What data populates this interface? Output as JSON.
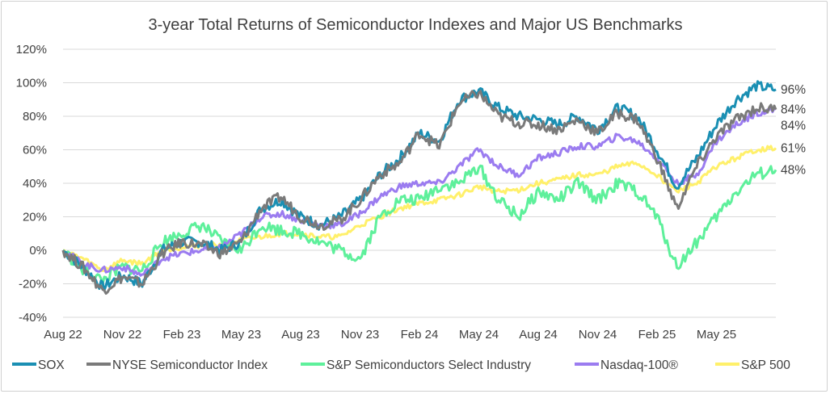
{
  "chart_data": {
    "type": "line",
    "title": "3-year Total Returns of Semiconductor Indexes and Major US Benchmarks",
    "xlabel": "",
    "ylabel": "",
    "ylim": [
      -40,
      120
    ],
    "y_ticks": [
      "-40%",
      "-20%",
      "0%",
      "20%",
      "40%",
      "60%",
      "80%",
      "100%",
      "120%"
    ],
    "x_ticks": [
      "Aug 22",
      "Nov 22",
      "Feb 23",
      "May 23",
      "Aug 23",
      "Nov 23",
      "Feb 24",
      "May 24",
      "Aug 24",
      "Nov 24",
      "Feb 25",
      "May 25"
    ],
    "grid": "horizontal",
    "legend_position": "bottom",
    "x": [
      "Aug 22",
      "Sep 22",
      "Oct 22",
      "Nov 22",
      "Dec 22",
      "Jan 23",
      "Feb 23",
      "Mar 23",
      "Apr 23",
      "May 23",
      "Jun 23",
      "Jul 23",
      "Aug 23",
      "Sep 23",
      "Oct 23",
      "Nov 23",
      "Dec 23",
      "Jan 24",
      "Feb 24",
      "Mar 24",
      "Apr 24",
      "May 24",
      "Jun 24",
      "Jul 24",
      "Aug 24",
      "Sep 24",
      "Oct 24",
      "Nov 24",
      "Dec 24",
      "Jan 25",
      "Feb 25",
      "Mar 25",
      "Apr 25",
      "May 25",
      "Jun 25",
      "Jul 25",
      "Aug 25"
    ],
    "series": [
      {
        "name": "SOX",
        "color": "#1a8fb3",
        "end_label": "96%",
        "values": [
          0,
          -10,
          -22,
          -15,
          -20,
          0,
          5,
          5,
          0,
          5,
          25,
          30,
          20,
          15,
          20,
          30,
          45,
          55,
          70,
          65,
          90,
          95,
          85,
          80,
          78,
          75,
          80,
          72,
          85,
          80,
          60,
          38,
          55,
          75,
          90,
          98,
          96
        ]
      },
      {
        "name": "NYSE Semiconductor Index",
        "color": "#7a7a7a",
        "end_label": "84%",
        "values": [
          0,
          -10,
          -24,
          -16,
          -20,
          -2,
          5,
          3,
          -2,
          5,
          25,
          32,
          20,
          15,
          18,
          30,
          45,
          52,
          70,
          62,
          88,
          94,
          80,
          76,
          75,
          72,
          78,
          70,
          82,
          78,
          55,
          25,
          50,
          68,
          78,
          85,
          84
        ]
      },
      {
        "name": "S&P Semiconductors Select Industry",
        "color": "#5ef09b",
        "end_label": "48%",
        "values": [
          0,
          -12,
          -18,
          -10,
          -12,
          5,
          10,
          15,
          5,
          0,
          15,
          12,
          10,
          5,
          0,
          -5,
          20,
          30,
          30,
          38,
          40,
          50,
          30,
          20,
          35,
          30,
          40,
          30,
          40,
          35,
          20,
          -10,
          5,
          20,
          35,
          45,
          48
        ]
      },
      {
        "name": "Nasdaq-100®",
        "color": "#9b7cf0",
        "end_label": "84%",
        "values": [
          0,
          -8,
          -12,
          -10,
          -15,
          -5,
          -2,
          0,
          2,
          10,
          20,
          22,
          18,
          15,
          15,
          22,
          32,
          38,
          40,
          40,
          50,
          60,
          50,
          45,
          55,
          58,
          62,
          62,
          68,
          65,
          55,
          40,
          45,
          65,
          75,
          82,
          84
        ]
      },
      {
        "name": "S&P 500",
        "color": "#fff06a",
        "end_label": "61%",
        "values": [
          0,
          -5,
          -12,
          -6,
          -8,
          0,
          2,
          3,
          3,
          6,
          8,
          10,
          10,
          8,
          8,
          15,
          20,
          25,
          28,
          30,
          33,
          38,
          35,
          36,
          40,
          42,
          45,
          45,
          50,
          52,
          45,
          35,
          40,
          50,
          55,
          60,
          61
        ]
      }
    ]
  }
}
